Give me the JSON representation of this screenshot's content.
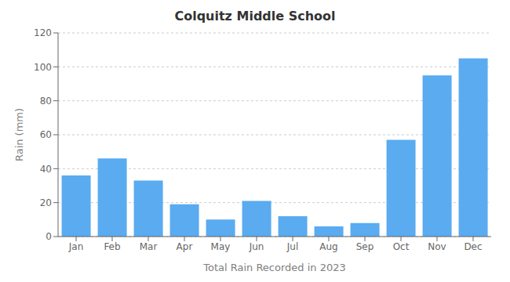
{
  "chart_data": {
    "type": "bar",
    "title": "Colquitz Middle School",
    "xlabel": "Total Rain Recorded in 2023",
    "ylabel": "Rain (mm)",
    "categories": [
      "Jan",
      "Feb",
      "Mar",
      "Apr",
      "May",
      "Jun",
      "Jul",
      "Aug",
      "Sep",
      "Oct",
      "Nov",
      "Dec"
    ],
    "values": [
      36,
      46,
      33,
      19,
      10,
      21,
      12,
      6,
      8,
      57,
      95,
      105
    ],
    "color": "#5aabf0",
    "ylim": [
      0,
      120
    ],
    "yticks": [
      0,
      20,
      40,
      60,
      80,
      100,
      120
    ],
    "grid": true
  }
}
